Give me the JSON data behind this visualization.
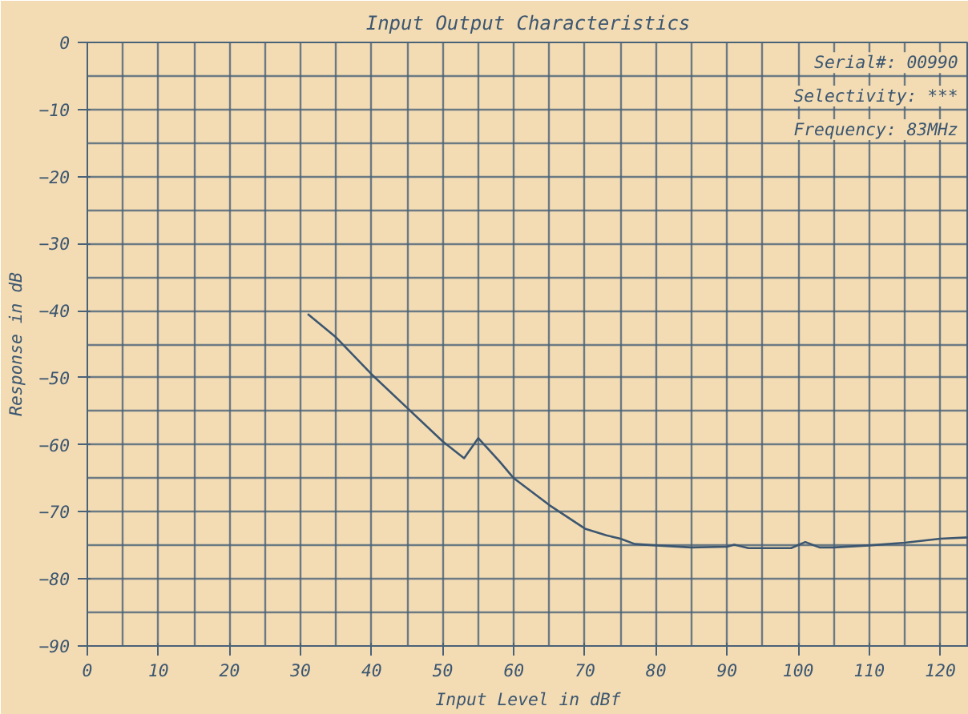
{
  "chart_data": {
    "type": "line",
    "title": "Input Output Characteristics",
    "xlabel": "Input Level in dBf",
    "ylabel": "Response in dB",
    "x": [
      31,
      35,
      40,
      45,
      50,
      53,
      55,
      58,
      60,
      65,
      70,
      73,
      75,
      77,
      80,
      85,
      90,
      91,
      93,
      99,
      101,
      103,
      105,
      110,
      115,
      120,
      124
    ],
    "series": [
      {
        "color": "#3c5670",
        "values": [
          -40.5,
          -44,
          -49.5,
          -54.5,
          -59.5,
          -62,
          -59,
          -62.5,
          -65,
          -69,
          -72.5,
          -73.5,
          -74,
          -74.8,
          -75,
          -75.3,
          -75.2,
          -74.9,
          -75.4,
          -75.4,
          -74.5,
          -75.3,
          -75.3,
          -75,
          -74.6,
          -74,
          -73.8
        ]
      }
    ],
    "xlim": [
      0,
      124
    ],
    "xticks": [
      0,
      10,
      20,
      30,
      40,
      50,
      60,
      70,
      80,
      90,
      100,
      110,
      120
    ],
    "ylim": [
      -90,
      0
    ],
    "yticks": [
      {
        "value": 0,
        "label": "0"
      },
      -10,
      -20,
      -30,
      -40,
      -50,
      -60,
      -70,
      -80,
      -90
    ],
    "grid": true,
    "marker": "none",
    "line_style": "solid",
    "annotations": [
      "Serial#: 00990",
      "Selectivity: ***",
      "Frequency: 83MHz"
    ]
  }
}
